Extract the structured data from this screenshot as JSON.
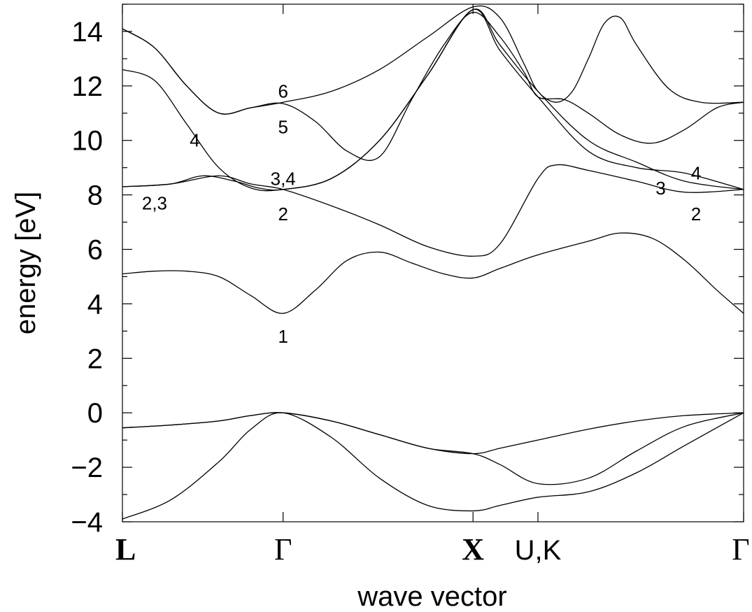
{
  "chart_data": {
    "type": "line",
    "title": "",
    "xlabel": "wave vector",
    "ylabel": "energy [eV]",
    "ylim": [
      -4,
      15
    ],
    "xlim": [
      0,
      3.866
    ],
    "grid": false,
    "legend": "none",
    "yticks": [
      -4,
      -2,
      0,
      2,
      4,
      6,
      8,
      10,
      12,
      14
    ],
    "ytick_labels": [
      "−4",
      "−2",
      "0",
      "2",
      "4",
      "6",
      "8",
      "10",
      "12",
      "14"
    ],
    "xticks": [
      {
        "x": 0.0,
        "label": "L",
        "style": "bold-serif"
      },
      {
        "x": 1.0,
        "label": "Γ",
        "style": "serif"
      },
      {
        "x": 2.182,
        "label": "X",
        "style": "bold-serif"
      },
      {
        "x": 2.586,
        "label": "U,K",
        "style": "sans"
      },
      {
        "x": 3.866,
        "label": "Γ",
        "style": "serif"
      }
    ],
    "series": [
      {
        "x": [
          0.0,
          0.3,
          0.6,
          0.8,
          1.0,
          1.3,
          1.6,
          1.9,
          2.182,
          2.35,
          2.586,
          2.9,
          3.2,
          3.5,
          3.866
        ],
        "y": [
          -3.9,
          -3.2,
          -1.8,
          -0.6,
          0.0,
          -0.9,
          -2.4,
          -3.4,
          -3.6,
          -3.4,
          -3.1,
          -2.9,
          -2.2,
          -1.2,
          0.0
        ]
      },
      {
        "x": [
          0.0,
          0.3,
          0.6,
          0.8,
          1.0,
          1.3,
          1.6,
          1.9,
          2.182,
          2.35,
          2.586,
          2.9,
          3.2,
          3.5,
          3.866
        ],
        "y": [
          -0.55,
          -0.45,
          -0.3,
          -0.1,
          0.0,
          -0.3,
          -0.8,
          -1.3,
          -1.5,
          -1.9,
          -2.6,
          -2.4,
          -1.4,
          -0.5,
          0.0
        ]
      },
      {
        "x": [
          0.0,
          0.3,
          0.6,
          0.8,
          1.0,
          1.3,
          1.6,
          1.9,
          2.182,
          2.35,
          2.586,
          2.9,
          3.2,
          3.5,
          3.866
        ],
        "y": [
          -0.55,
          -0.45,
          -0.3,
          -0.1,
          0.0,
          -0.3,
          -0.8,
          -1.3,
          -1.5,
          -1.3,
          -1.0,
          -0.6,
          -0.3,
          -0.1,
          0.0
        ]
      },
      {
        "x": [
          0.0,
          0.2,
          0.4,
          0.6,
          0.8,
          1.0,
          1.2,
          1.4,
          1.6,
          1.8,
          2.0,
          2.182,
          2.35,
          2.586,
          2.9,
          3.1,
          3.3,
          3.5,
          3.7,
          3.866
        ],
        "y": [
          5.1,
          5.2,
          5.2,
          5.0,
          4.3,
          3.65,
          4.5,
          5.6,
          5.9,
          5.5,
          5.1,
          4.95,
          5.3,
          5.8,
          6.3,
          6.6,
          6.4,
          5.6,
          4.5,
          3.65
        ]
      },
      {
        "x": [
          0.0,
          0.3,
          0.6,
          0.8,
          1.0,
          1.3,
          1.6,
          1.9,
          2.182,
          2.35,
          2.586,
          2.7,
          2.9,
          3.2,
          3.5,
          3.866
        ],
        "y": [
          8.3,
          8.4,
          8.7,
          8.4,
          8.2,
          7.6,
          6.9,
          6.1,
          5.75,
          6.2,
          8.6,
          9.1,
          8.9,
          8.5,
          8.1,
          8.2
        ]
      },
      {
        "x": [
          0.0,
          0.3,
          0.5,
          0.7,
          0.85,
          1.0,
          1.3,
          1.6,
          1.9,
          2.182,
          2.35,
          2.586,
          2.9,
          3.2,
          3.5,
          3.866
        ],
        "y": [
          8.3,
          8.4,
          8.7,
          8.5,
          8.25,
          8.2,
          8.6,
          10.0,
          12.4,
          14.8,
          13.5,
          11.8,
          10.0,
          9.2,
          8.5,
          8.2
        ]
      },
      {
        "x": [
          0.0,
          0.2,
          0.4,
          0.6,
          0.8,
          1.0,
          1.3,
          1.6,
          1.9,
          2.182,
          2.35,
          2.586,
          2.9,
          3.2,
          3.5,
          3.866
        ],
        "y": [
          12.6,
          12.2,
          10.6,
          9.0,
          8.25,
          8.2,
          8.6,
          10.0,
          12.4,
          14.8,
          13.3,
          11.6,
          9.6,
          9.0,
          8.8,
          8.2
        ]
      },
      {
        "x": [
          0.0,
          0.2,
          0.4,
          0.6,
          0.8,
          1.0,
          1.2,
          1.4,
          1.6,
          1.8,
          2.0,
          2.182,
          2.35,
          2.5,
          2.586,
          2.75,
          2.9,
          3.1,
          3.3,
          3.5,
          3.7,
          3.866
        ],
        "y": [
          14.1,
          13.4,
          12.0,
          11.0,
          11.2,
          11.35,
          10.7,
          9.6,
          9.4,
          11.5,
          13.5,
          14.7,
          13.8,
          12.5,
          11.6,
          11.5,
          11.0,
          10.2,
          9.9,
          10.4,
          11.2,
          11.4
        ]
      },
      {
        "x": [
          0.0,
          0.2,
          0.4,
          0.6,
          0.8,
          1.0,
          1.3,
          1.6,
          1.9,
          2.182,
          2.35,
          2.5,
          2.586,
          2.7,
          2.8,
          2.9,
          3.0,
          3.1,
          3.2,
          3.4,
          3.6,
          3.866
        ],
        "y": [
          14.1,
          13.4,
          12.0,
          11.0,
          11.2,
          11.4,
          11.8,
          12.6,
          13.8,
          14.9,
          14.5,
          12.8,
          11.8,
          11.4,
          11.8,
          13.0,
          14.3,
          14.5,
          13.5,
          11.9,
          11.4,
          11.4
        ]
      }
    ],
    "annotations": [
      {
        "text": "6",
        "x": 1.0,
        "y": 11.8
      },
      {
        "text": "5",
        "x": 1.0,
        "y": 10.5
      },
      {
        "text": "4",
        "x": 0.45,
        "y": 10.0
      },
      {
        "text": "3,4",
        "x": 1.0,
        "y": 8.6
      },
      {
        "text": "2,3",
        "x": 0.2,
        "y": 7.7
      },
      {
        "text": "2",
        "x": 1.0,
        "y": 7.3
      },
      {
        "text": "1",
        "x": 1.0,
        "y": 2.8
      },
      {
        "text": "4",
        "x": 3.57,
        "y": 8.8
      },
      {
        "text": "3",
        "x": 3.35,
        "y": 8.25
      },
      {
        "text": "2",
        "x": 3.57,
        "y": 7.3
      }
    ]
  }
}
